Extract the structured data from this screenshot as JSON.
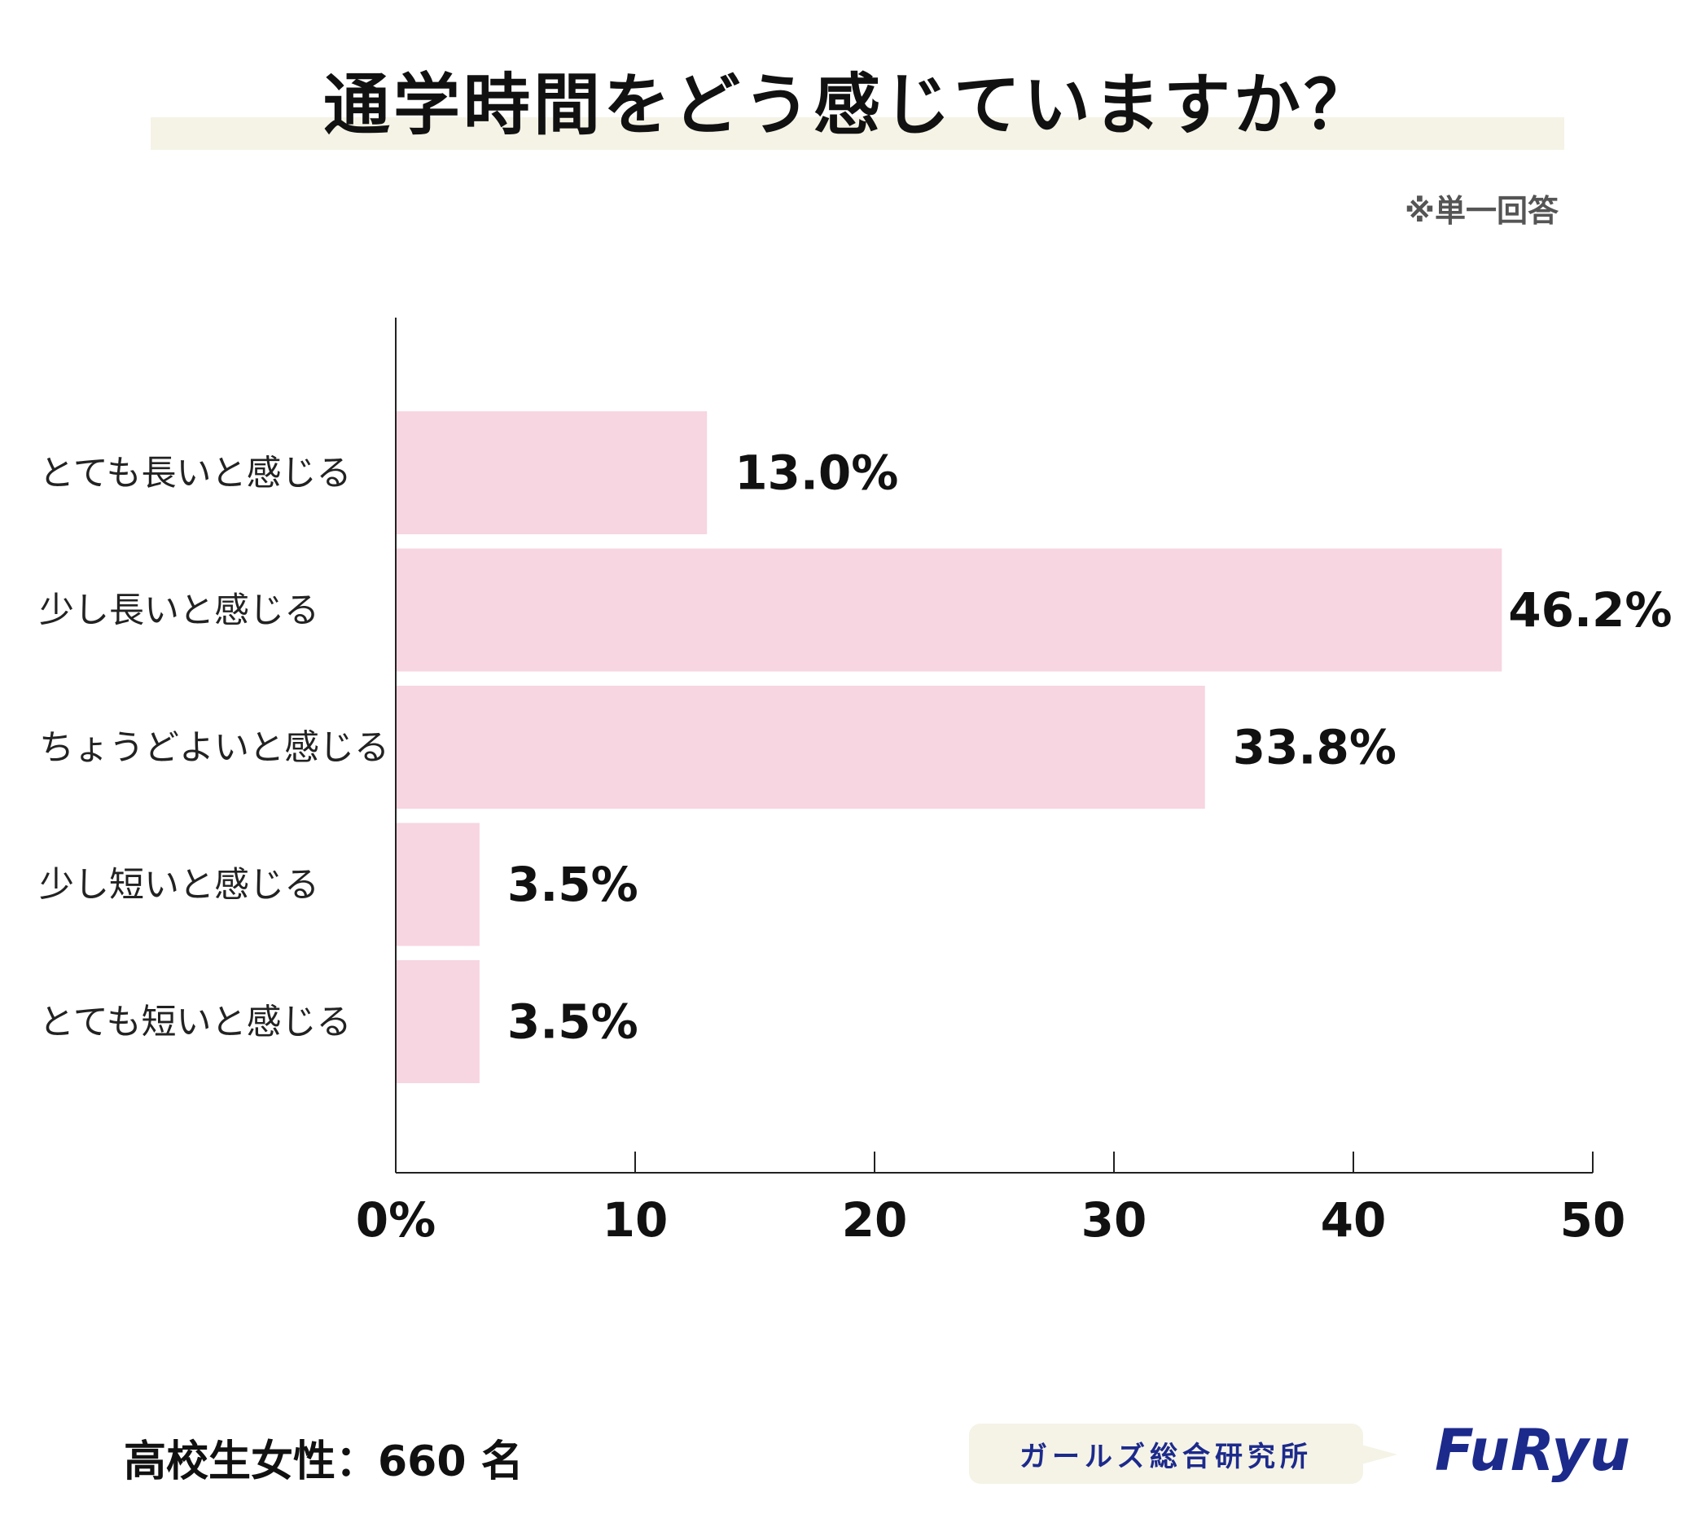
{
  "title": "通学時間をどう感じていますか？",
  "note": "※単一回答",
  "sample": "高校生女性：660 名",
  "brand": {
    "name": "ガールズ総合研究所",
    "logo": "FuRyu"
  },
  "colors": {
    "bar": "#f7d5e1",
    "title_band": "#f5f3e6",
    "brand": "#1c2a8c"
  },
  "chart_data": {
    "type": "bar",
    "orientation": "horizontal",
    "title": "通学時間をどう感じていますか？",
    "categories": [
      "とても長いと感じる",
      "少し長いと感じる",
      "ちょうどよいと感じる",
      "少し短いと感じる",
      "とても短いと感じる"
    ],
    "values": [
      13.0,
      46.2,
      33.8,
      3.5,
      3.5
    ],
    "value_labels": [
      "13.0%",
      "46.2%",
      "33.8%",
      "3.5%",
      "3.5%"
    ],
    "xlim": [
      0,
      50
    ],
    "xticks": [
      0,
      10,
      20,
      30,
      40,
      50
    ],
    "xtick_labels": [
      "0%",
      "10",
      "20",
      "30",
      "40",
      "50"
    ],
    "grid": false,
    "legend": "none"
  }
}
